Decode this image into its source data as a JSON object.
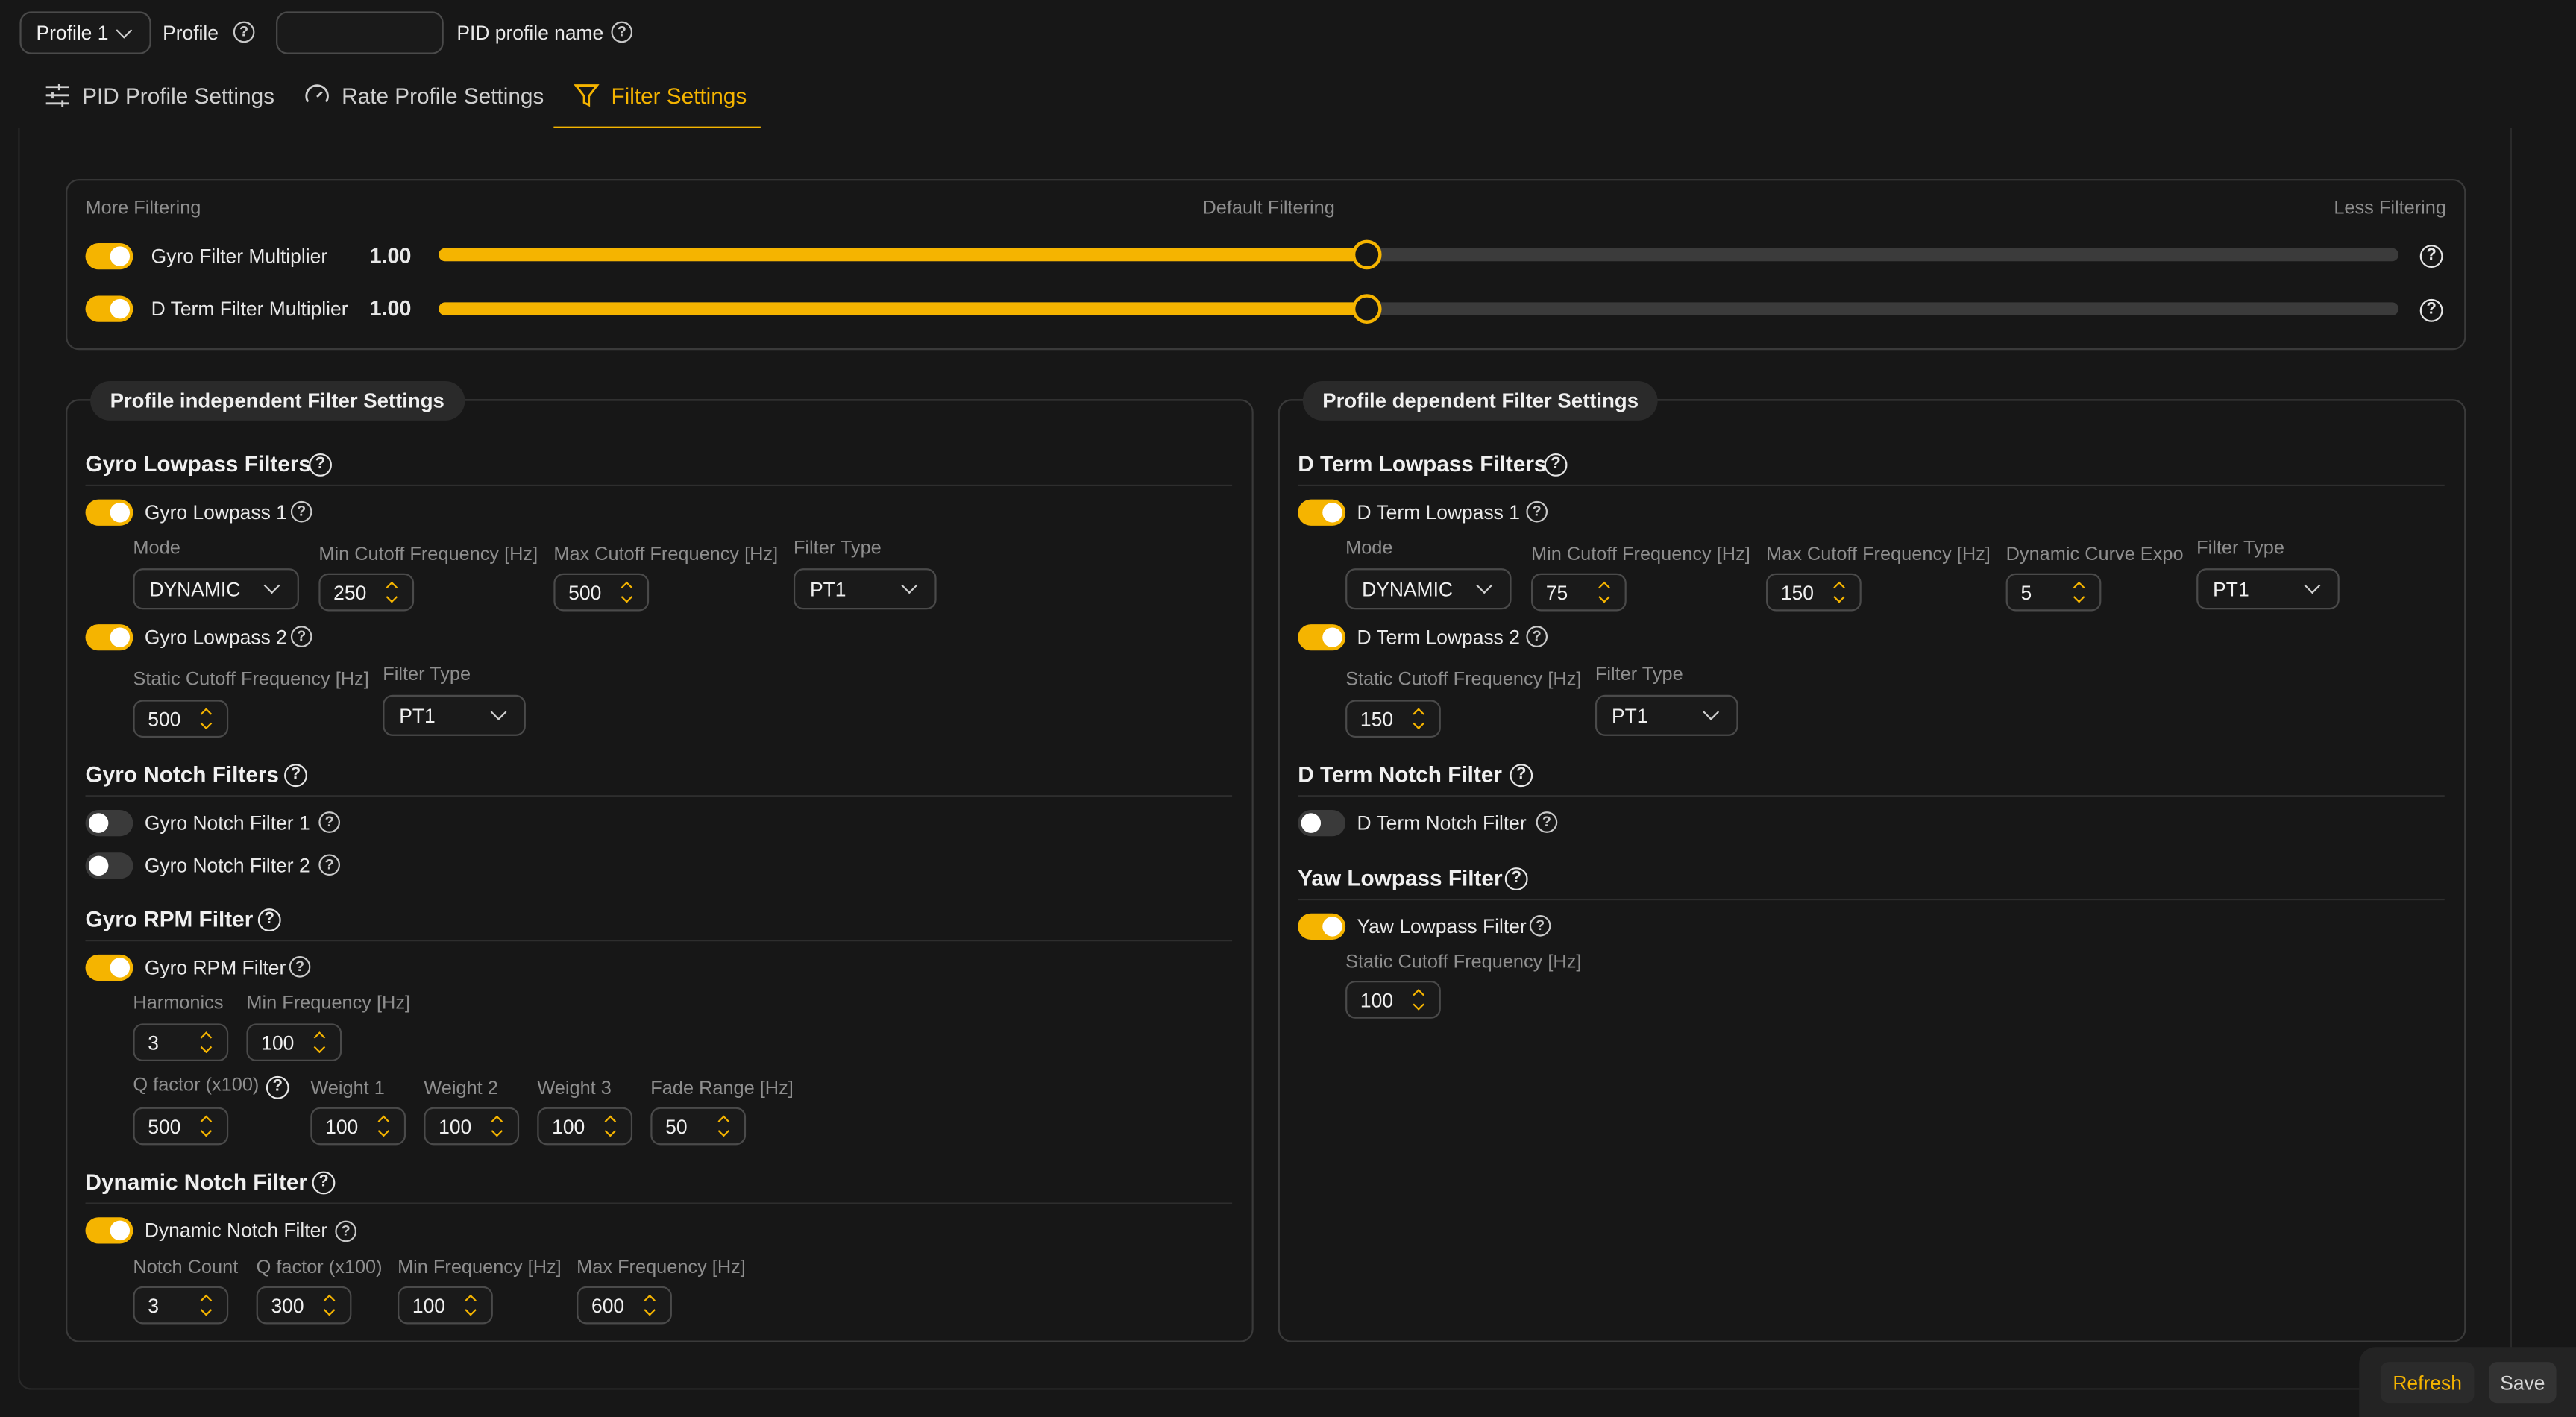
{
  "top": {
    "profile_select": "Profile 1",
    "profile_label": "Profile",
    "profile_name_value": "",
    "profile_name_label": "PID profile name"
  },
  "tabs": [
    {
      "label": "PID Profile Settings"
    },
    {
      "label": "Rate Profile Settings"
    },
    {
      "label": "Filter Settings",
      "active": true
    }
  ],
  "multipliers": {
    "more": "More Filtering",
    "default": "Default Filtering",
    "less": "Less Filtering",
    "gyro": {
      "label": "Gyro Filter Multiplier",
      "value": "1.00",
      "level": 0.474
    },
    "dterm": {
      "label": "D Term Filter Multiplier",
      "value": "1.00",
      "level": 0.474
    }
  },
  "left": {
    "title": "Profile independent Filter Settings",
    "gyro_lowpass": {
      "title": "Gyro Lowpass Filters",
      "lp1": {
        "label": "Gyro Lowpass 1",
        "mode_label": "Mode",
        "mode": "DYNAMIC",
        "min_label": "Min Cutoff Frequency [Hz]",
        "min": "250",
        "max_label": "Max Cutoff Frequency [Hz]",
        "max": "500",
        "type_label": "Filter Type",
        "type": "PT1"
      },
      "lp2": {
        "label": "Gyro Lowpass 2",
        "static_label": "Static Cutoff Frequency [Hz]",
        "static": "500",
        "type_label": "Filter Type",
        "type": "PT1"
      }
    },
    "gyro_notch": {
      "title": "Gyro Notch Filters",
      "n1": "Gyro Notch Filter 1",
      "n2": "Gyro Notch Filter 2"
    },
    "gyro_rpm": {
      "title": "Gyro RPM Filter",
      "label": "Gyro RPM Filter",
      "harm_label": "Harmonics",
      "harm": "3",
      "minf_label": "Min Frequency [Hz]",
      "minf": "100",
      "q_label": "Q factor (x100)",
      "q": "500",
      "w1_label": "Weight 1",
      "w1": "100",
      "w2_label": "Weight 2",
      "w2": "100",
      "w3_label": "Weight 3",
      "w3": "100",
      "fade_label": "Fade Range [Hz]",
      "fade": "50"
    },
    "dyn_notch": {
      "title": "Dynamic Notch Filter",
      "label": "Dynamic Notch Filter",
      "count_label": "Notch Count",
      "count": "3",
      "q_label": "Q factor (x100)",
      "q": "300",
      "minf_label": "Min Frequency [Hz]",
      "minf": "100",
      "maxf_label": "Max Frequency [Hz]",
      "maxf": "600"
    }
  },
  "right": {
    "title": "Profile dependent Filter Settings",
    "dterm_lowpass": {
      "title": "D Term Lowpass Filters",
      "lp1": {
        "label": "D Term Lowpass 1",
        "mode_label": "Mode",
        "mode": "DYNAMIC",
        "min_label": "Min Cutoff Frequency [Hz]",
        "min": "75",
        "max_label": "Max Cutoff Frequency [Hz]",
        "max": "150",
        "expo_label": "Dynamic Curve Expo",
        "expo": "5",
        "type_label": "Filter Type",
        "type": "PT1"
      },
      "lp2": {
        "label": "D Term Lowpass 2",
        "static_label": "Static Cutoff Frequency [Hz]",
        "static": "150",
        "type_label": "Filter Type",
        "type": "PT1"
      }
    },
    "dterm_notch": {
      "title": "D Term Notch Filter",
      "label": "D Term Notch Filter"
    },
    "yaw": {
      "title": "Yaw Lowpass Filter",
      "label": "Yaw Lowpass Filter",
      "static_label": "Static Cutoff Frequency [Hz]",
      "static": "100"
    }
  },
  "footer": {
    "refresh": "Refresh",
    "save": "Save"
  },
  "colors": {
    "accent": "#f5b400",
    "bg": "#171717"
  }
}
